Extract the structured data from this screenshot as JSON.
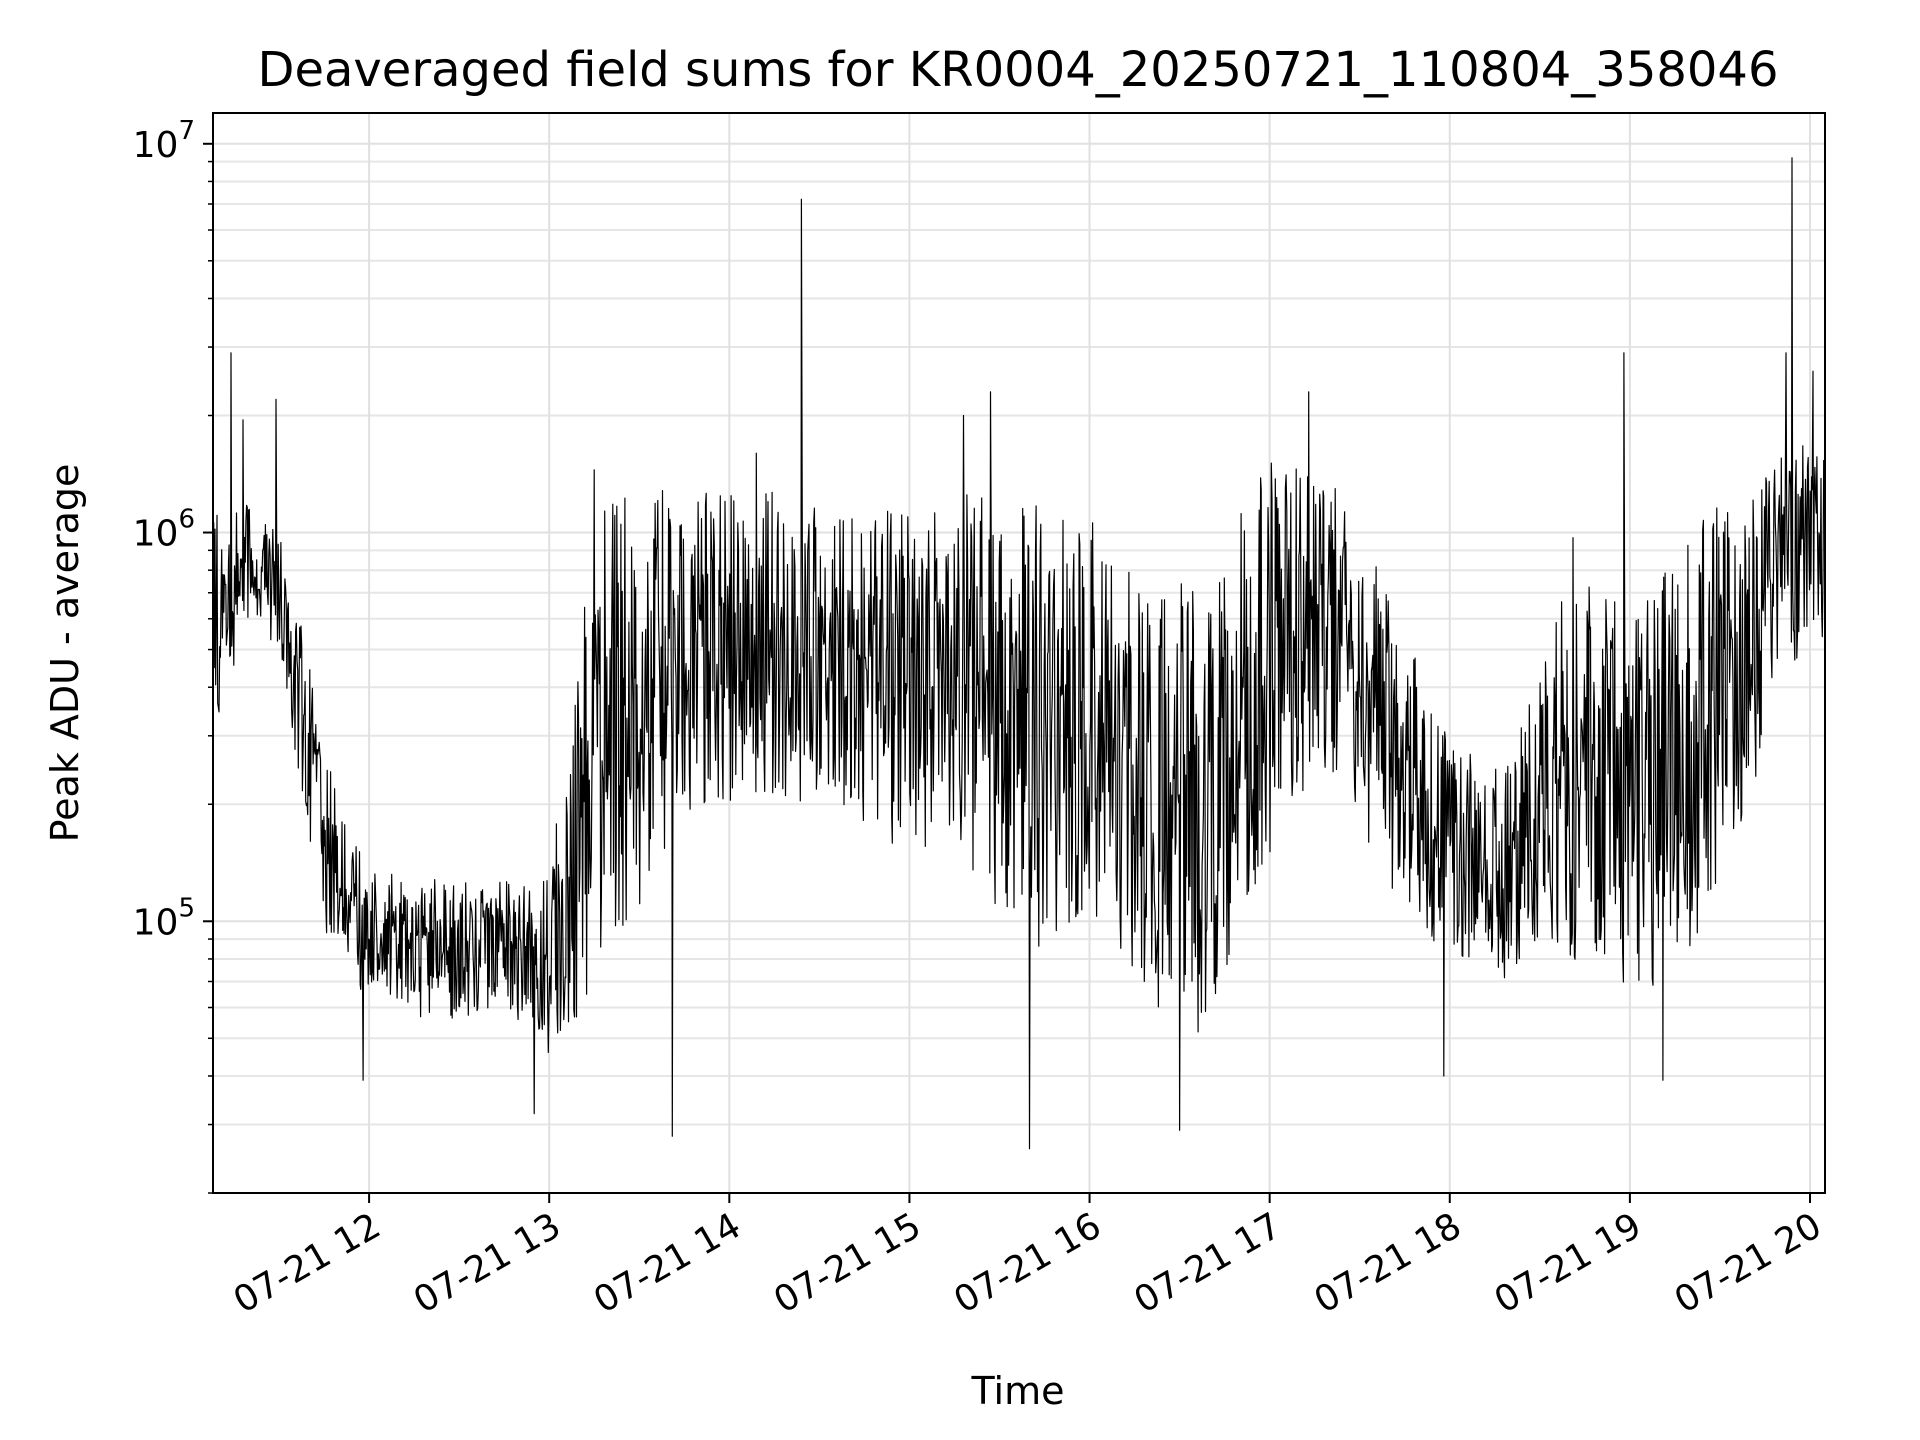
{
  "chart_data": {
    "type": "line",
    "title": "Deaveraged field sums for KR0004_20250721_110804_358046",
    "xlabel": "Time",
    "ylabel": "Peak ADU - average",
    "yscale": "log",
    "ylim": [
      20000,
      12000000
    ],
    "xlim": [
      "2025-07-21 11:08",
      "2025-07-21 20:05"
    ],
    "grid": true,
    "line_color": "#000000",
    "x_ticks": [
      {
        "x": "2025-07-21 12:00",
        "label": "07-21 12"
      },
      {
        "x": "2025-07-21 13:00",
        "label": "07-21 13"
      },
      {
        "x": "2025-07-21 14:00",
        "label": "07-21 14"
      },
      {
        "x": "2025-07-21 15:00",
        "label": "07-21 15"
      },
      {
        "x": "2025-07-21 16:00",
        "label": "07-21 16"
      },
      {
        "x": "2025-07-21 17:00",
        "label": "07-21 17"
      },
      {
        "x": "2025-07-21 18:00",
        "label": "07-21 18"
      },
      {
        "x": "2025-07-21 19:00",
        "label": "07-21 19"
      },
      {
        "x": "2025-07-21 20:00",
        "label": "07-21 20"
      }
    ],
    "y_ticks": [
      {
        "value": 100000,
        "base": "10",
        "exp": "5"
      },
      {
        "value": 1000000,
        "base": "10",
        "exp": "6"
      },
      {
        "value": 10000000,
        "base": "10",
        "exp": "7"
      }
    ],
    "envelope": {
      "x": [
        "2025-07-21 11:08",
        "2025-07-21 11:20",
        "2025-07-21 11:30",
        "2025-07-21 11:38",
        "2025-07-21 11:45",
        "2025-07-21 11:52",
        "2025-07-21 12:00",
        "2025-07-21 12:10",
        "2025-07-21 12:20",
        "2025-07-21 12:30",
        "2025-07-21 12:40",
        "2025-07-21 12:50",
        "2025-07-21 13:00",
        "2025-07-21 13:10",
        "2025-07-21 13:20",
        "2025-07-21 13:40",
        "2025-07-21 14:00",
        "2025-07-21 14:20",
        "2025-07-21 14:40",
        "2025-07-21 15:00",
        "2025-07-21 15:20",
        "2025-07-21 15:40",
        "2025-07-21 16:00",
        "2025-07-21 16:20",
        "2025-07-21 16:40",
        "2025-07-21 17:00",
        "2025-07-21 17:20",
        "2025-07-21 17:40",
        "2025-07-21 18:00",
        "2025-07-21 18:20",
        "2025-07-21 18:40",
        "2025-07-21 19:00",
        "2025-07-21 19:20",
        "2025-07-21 19:40",
        "2025-07-21 19:50",
        "2025-07-21 20:05"
      ],
      "low": [
        300000,
        600000,
        500000,
        200000,
        90000,
        70000,
        65000,
        60000,
        55000,
        55000,
        60000,
        55000,
        45000,
        50000,
        80000,
        150000,
        200000,
        200000,
        180000,
        150000,
        140000,
        80000,
        100000,
        60000,
        50000,
        150000,
        250000,
        120000,
        80000,
        70000,
        80000,
        60000,
        80000,
        200000,
        450000,
        500000
      ],
      "high": [
        1100000,
        1200000,
        1000000,
        600000,
        300000,
        180000,
        140000,
        130000,
        130000,
        130000,
        130000,
        130000,
        130000,
        600000,
        1300000,
        1300000,
        1300000,
        1300000,
        1200000,
        1100000,
        1300000,
        1200000,
        1100000,
        700000,
        800000,
        1600000,
        1400000,
        700000,
        300000,
        250000,
        1000000,
        600000,
        1000000,
        1400000,
        1800000,
        1600000
      ]
    },
    "spikes": [
      {
        "x": "2025-07-21 11:14",
        "y": 2900000
      },
      {
        "x": "2025-07-21 11:18",
        "y": 1950000
      },
      {
        "x": "2025-07-21 11:29",
        "y": 2200000
      },
      {
        "x": "2025-07-21 13:15",
        "y": 1450000
      },
      {
        "x": "2025-07-21 14:09",
        "y": 1600000
      },
      {
        "x": "2025-07-21 14:24",
        "y": 7200000
      },
      {
        "x": "2025-07-21 15:27",
        "y": 2300000
      },
      {
        "x": "2025-07-21 15:18",
        "y": 2000000
      },
      {
        "x": "2025-07-21 17:13",
        "y": 2300000
      },
      {
        "x": "2025-07-21 18:58",
        "y": 2900000
      },
      {
        "x": "2025-07-21 19:52",
        "y": 2900000
      },
      {
        "x": "2025-07-21 19:54",
        "y": 9200000
      },
      {
        "x": "2025-07-21 20:01",
        "y": 2600000
      }
    ],
    "dips": [
      {
        "x": "2025-07-21 11:58",
        "y": 39000
      },
      {
        "x": "2025-07-21 12:55",
        "y": 32000
      },
      {
        "x": "2025-07-21 13:41",
        "y": 28000
      },
      {
        "x": "2025-07-21 15:40",
        "y": 26000
      },
      {
        "x": "2025-07-21 16:30",
        "y": 29000
      },
      {
        "x": "2025-07-21 17:58",
        "y": 40000
      },
      {
        "x": "2025-07-21 19:11",
        "y": 39000
      }
    ]
  }
}
